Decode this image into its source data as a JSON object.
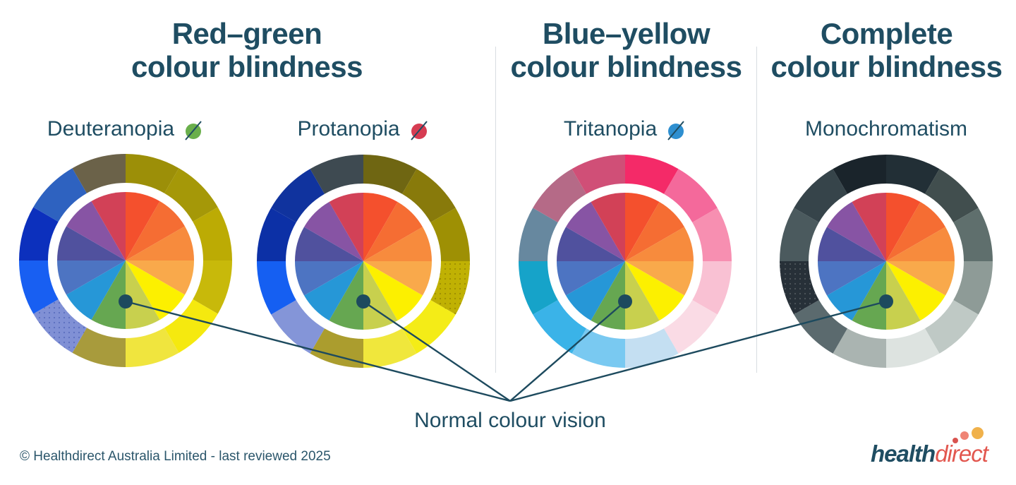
{
  "palette": {
    "heading_text": "#1f4d62",
    "leader_line": "#1d4a5e",
    "divider": "#d8dde1",
    "background": "#ffffff"
  },
  "sections": [
    {
      "title_line1": "Red–green",
      "title_line2": "colour blindness"
    },
    {
      "title_line1": "Blue–yellow",
      "title_line2": "colour blindness"
    },
    {
      "title_line1": "Complete",
      "title_line2": "colour blindness"
    }
  ],
  "normal_wheel": {
    "colors": [
      "#f4502d",
      "#f56d33",
      "#f78b3d",
      "#f9a94b",
      "#fcf000",
      "#c8d04e",
      "#66a751",
      "#2697d7",
      "#4d74c2",
      "#50519e",
      "#8754a4",
      "#d24157"
    ]
  },
  "wheels": [
    {
      "name": "Deuteranopia",
      "icon": "green-slashed-dot",
      "icon_color": "#6aaf4b",
      "outer_colors": [
        "#9c8f08",
        "#a59808",
        "#bcab04",
        "#c8b90a",
        "#f5e90f",
        "#f0e53e",
        "#a89b3c",
        "#8090d5",
        "#185ff2",
        "#0c30bd",
        "#2e62c0",
        "#6b6249"
      ],
      "dotted_segments": [
        7
      ],
      "dot_texture_color": "rgba(23,46,150,0.35)"
    },
    {
      "name": "Protanopia",
      "icon": "red-slashed-dot",
      "icon_color": "#d63c52",
      "outer_colors": [
        "#6f6612",
        "#887a0b",
        "#9e9004",
        "#c0b103",
        "#f4ec17",
        "#f0e73c",
        "#ab9d2e",
        "#8495d8",
        "#155ff2",
        "#0c30a6",
        "#10339e",
        "#3e4a51"
      ],
      "dotted_segments": [
        3
      ],
      "dot_texture_color": "rgba(90,75,0,0.35)"
    },
    {
      "name": "Tritanopia",
      "icon": "blue-slashed-dot",
      "icon_color": "#2e8fd0",
      "outer_colors": [
        "#f42a68",
        "#f4699b",
        "#f78fb1",
        "#f9c1d3",
        "#fadbe5",
        "#c4dff2",
        "#79c9f1",
        "#3ab3e8",
        "#16a3c9",
        "#67889f",
        "#b56a87",
        "#d04f77"
      ],
      "dotted_segments": [],
      "dot_texture_color": "rgba(255,255,255,0.2)"
    },
    {
      "name": "Monochromatism",
      "icon": null,
      "icon_color": null,
      "outer_colors": [
        "#222f36",
        "#414e4e",
        "#5f6f6d",
        "#8e9b97",
        "#bfc9c5",
        "#dde3e0",
        "#aab4b1",
        "#5b6a6e",
        "#273038",
        "#4b5a5e",
        "#36444a",
        "#1a242b"
      ],
      "dotted_segments": [
        8
      ],
      "dot_texture_color": "rgba(255,255,255,0.18)"
    }
  ],
  "callout": {
    "label": "Normal colour vision"
  },
  "footer": {
    "copyright": "© Healthdirect Australia Limited - last reviewed 2025"
  },
  "logo": {
    "bold": "health",
    "light": "direct",
    "dot_colors": [
      "#d9534f",
      "#ef8475",
      "#f0b14b"
    ]
  }
}
